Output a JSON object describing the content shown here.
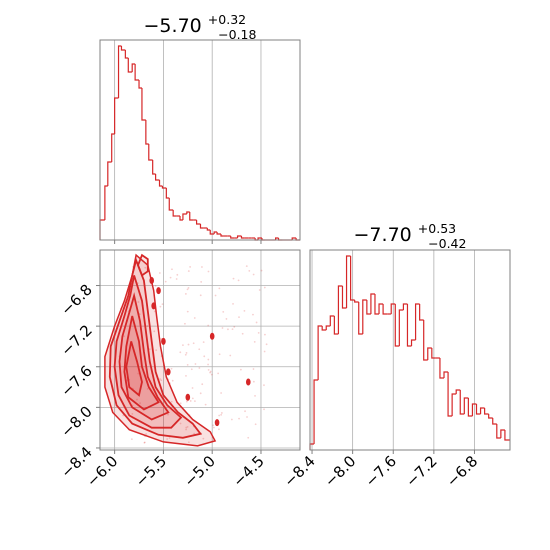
{
  "colors": {
    "accent": "#d62728",
    "grid": "#b0b0b0",
    "frame": "#808080"
  },
  "chart_data": [
    {
      "type": "histogram",
      "panel": "top-left",
      "title": {
        "value": "−5.70",
        "upper": "+0.32",
        "lower": "−0.18"
      },
      "xlim": [
        -6.15,
        -4.1
      ],
      "grid": true,
      "xgrid": [
        -6.0,
        -5.5,
        -5.0,
        -4.5
      ],
      "bin_edges": [
        -6.15,
        -6.1,
        -6.07,
        -6.03,
        -6.0,
        -5.96,
        -5.93,
        -5.89,
        -5.86,
        -5.82,
        -5.79,
        -5.75,
        -5.72,
        -5.68,
        -5.65,
        -5.61,
        -5.58,
        -5.54,
        -5.51,
        -5.47,
        -5.44,
        -5.4,
        -5.37,
        -5.33,
        -5.3,
        -5.26,
        -5.23,
        -5.19,
        -5.16,
        -5.12,
        -5.09,
        -5.05,
        -5.02,
        -4.98,
        -4.95,
        -4.91,
        -4.88,
        -4.84,
        -4.81,
        -4.77,
        -4.74,
        -4.7,
        -4.67,
        -4.63,
        -4.6,
        -4.56,
        -4.53,
        -4.49,
        -4.46,
        -4.42,
        -4.39,
        -4.35,
        -4.32,
        -4.28,
        -4.25,
        -4.21,
        -4.18,
        -4.14,
        -4.1
      ],
      "counts": [
        0.1,
        0.27,
        0.39,
        0.53,
        0.71,
        0.97,
        0.95,
        0.91,
        0.84,
        0.88,
        0.8,
        0.76,
        0.6,
        0.48,
        0.4,
        0.33,
        0.3,
        0.27,
        0.26,
        0.21,
        0.15,
        0.12,
        0.12,
        0.1,
        0.13,
        0.14,
        0.1,
        0.1,
        0.08,
        0.06,
        0.06,
        0.05,
        0.03,
        0.04,
        0.03,
        0.02,
        0.02,
        0.02,
        0.01,
        0.01,
        0.02,
        0.01,
        0.01,
        0.01,
        0.01,
        0.0,
        0.01,
        0.0,
        0.0,
        0.0,
        0.0,
        0.01,
        0.0,
        0.0,
        0.0,
        0.0,
        0.01,
        0.0
      ]
    },
    {
      "type": "contour",
      "panel": "bottom-left",
      "xlim": [
        -6.15,
        -4.1
      ],
      "ylim": [
        -8.42,
        -6.45
      ],
      "grid": true,
      "xticks": [
        -6.0,
        -5.5,
        -5.0,
        -4.5
      ],
      "xtick_labels": [
        "−6.0",
        "−5.5",
        "−5.0",
        "−4.5"
      ],
      "yticks": [
        -6.8,
        -7.2,
        -7.6,
        -8.0,
        -8.4
      ],
      "ytick_labels": [
        "−6.8",
        "−7.2",
        "−7.6",
        "−8.0",
        "−8.4"
      ],
      "region_outline": [
        [
          -5.78,
          -6.5
        ],
        [
          -5.66,
          -6.6
        ],
        [
          -5.6,
          -6.85
        ],
        [
          -5.57,
          -7.1
        ],
        [
          -5.53,
          -7.4
        ],
        [
          -5.47,
          -7.7
        ],
        [
          -5.36,
          -7.95
        ],
        [
          -5.2,
          -8.12
        ],
        [
          -5.02,
          -8.24
        ],
        [
          -4.97,
          -8.33
        ],
        [
          -5.15,
          -8.38
        ],
        [
          -5.5,
          -8.34
        ],
        [
          -5.85,
          -8.22
        ],
        [
          -6.02,
          -8.05
        ],
        [
          -6.1,
          -7.8
        ],
        [
          -6.1,
          -7.5
        ],
        [
          -6.0,
          -7.2
        ],
        [
          -5.9,
          -6.95
        ],
        [
          -5.82,
          -6.7
        ]
      ],
      "contours": [
        [
          [
            -5.78,
            -6.55
          ],
          [
            -5.7,
            -6.75
          ],
          [
            -5.66,
            -7.05
          ],
          [
            -5.62,
            -7.35
          ],
          [
            -5.58,
            -7.65
          ],
          [
            -5.5,
            -7.88
          ],
          [
            -5.35,
            -8.05
          ],
          [
            -5.2,
            -8.16
          ],
          [
            -5.12,
            -8.26
          ],
          [
            -5.3,
            -8.3
          ],
          [
            -5.55,
            -8.27
          ],
          [
            -5.82,
            -8.16
          ],
          [
            -5.98,
            -7.98
          ],
          [
            -6.05,
            -7.7
          ],
          [
            -6.04,
            -7.4
          ],
          [
            -5.95,
            -7.15
          ],
          [
            -5.86,
            -6.9
          ],
          [
            -5.82,
            -6.7
          ]
        ],
        [
          [
            -5.8,
            -6.7
          ],
          [
            -5.72,
            -6.95
          ],
          [
            -5.68,
            -7.25
          ],
          [
            -5.64,
            -7.55
          ],
          [
            -5.58,
            -7.8
          ],
          [
            -5.46,
            -7.98
          ],
          [
            -5.32,
            -8.1
          ],
          [
            -5.42,
            -8.2
          ],
          [
            -5.62,
            -8.2
          ],
          [
            -5.85,
            -8.08
          ],
          [
            -5.96,
            -7.88
          ],
          [
            -6.0,
            -7.6
          ],
          [
            -5.98,
            -7.35
          ],
          [
            -5.9,
            -7.1
          ],
          [
            -5.84,
            -6.9
          ]
        ],
        [
          [
            -5.8,
            -6.9
          ],
          [
            -5.74,
            -7.15
          ],
          [
            -5.7,
            -7.45
          ],
          [
            -5.66,
            -7.7
          ],
          [
            -5.56,
            -7.9
          ],
          [
            -5.45,
            -8.05
          ],
          [
            -5.62,
            -8.12
          ],
          [
            -5.82,
            -8.0
          ],
          [
            -5.93,
            -7.8
          ],
          [
            -5.95,
            -7.55
          ],
          [
            -5.92,
            -7.3
          ],
          [
            -5.86,
            -7.1
          ]
        ],
        [
          [
            -5.82,
            -7.1
          ],
          [
            -5.75,
            -7.35
          ],
          [
            -5.72,
            -7.6
          ],
          [
            -5.65,
            -7.8
          ],
          [
            -5.55,
            -7.95
          ],
          [
            -5.7,
            -8.02
          ],
          [
            -5.86,
            -7.9
          ],
          [
            -5.9,
            -7.65
          ],
          [
            -5.88,
            -7.4
          ]
        ],
        [
          [
            -5.83,
            -7.35
          ],
          [
            -5.77,
            -7.55
          ],
          [
            -5.72,
            -7.75
          ],
          [
            -5.75,
            -7.88
          ],
          [
            -5.85,
            -7.8
          ],
          [
            -5.88,
            -7.6
          ]
        ],
        [
          [
            -5.72,
            -6.5
          ],
          [
            -5.66,
            -6.54
          ],
          [
            -5.66,
            -6.66
          ],
          [
            -5.72,
            -6.7
          ],
          [
            -5.76,
            -6.6
          ]
        ]
      ],
      "islands": [
        [
          -5.6,
          -7.0
        ],
        [
          -5.5,
          -7.35
        ],
        [
          -5.45,
          -7.65
        ],
        [
          -5.25,
          -7.9
        ],
        [
          -5.0,
          -7.3
        ],
        [
          -4.63,
          -7.75
        ],
        [
          -4.95,
          -8.15
        ],
        [
          -5.55,
          -6.85
        ],
        [
          -5.62,
          -6.75
        ]
      ]
    },
    {
      "type": "histogram",
      "panel": "bottom-right",
      "title": {
        "value": "−7.70",
        "upper": "+0.53",
        "lower": "−0.42"
      },
      "xlim": [
        -8.42,
        -6.45
      ],
      "grid": true,
      "xticks": [
        -8.4,
        -8.0,
        -7.6,
        -7.2,
        -6.8
      ],
      "xtick_labels": [
        "−8.4",
        "−8.0",
        "−7.6",
        "−7.2",
        "−6.8"
      ],
      "bin_edges": [
        -8.42,
        -8.38,
        -8.34,
        -8.3,
        -8.26,
        -8.22,
        -8.18,
        -8.14,
        -8.1,
        -8.06,
        -8.02,
        -7.98,
        -7.94,
        -7.9,
        -7.86,
        -7.82,
        -7.78,
        -7.74,
        -7.7,
        -7.66,
        -7.62,
        -7.58,
        -7.54,
        -7.5,
        -7.46,
        -7.42,
        -7.38,
        -7.34,
        -7.3,
        -7.26,
        -7.22,
        -7.18,
        -7.14,
        -7.1,
        -7.06,
        -7.02,
        -6.98,
        -6.94,
        -6.9,
        -6.86,
        -6.82,
        -6.78,
        -6.74,
        -6.7,
        -6.66,
        -6.62,
        -6.58,
        -6.54,
        -6.5,
        -6.45
      ],
      "counts": [
        0.03,
        0.35,
        0.62,
        0.6,
        0.62,
        0.67,
        0.58,
        0.82,
        0.71,
        0.97,
        0.75,
        0.74,
        0.58,
        0.75,
        0.68,
        0.78,
        0.68,
        0.73,
        0.68,
        0.68,
        0.73,
        0.52,
        0.7,
        0.73,
        0.52,
        0.55,
        0.73,
        0.65,
        0.45,
        0.51,
        0.46,
        0.46,
        0.36,
        0.39,
        0.17,
        0.28,
        0.3,
        0.18,
        0.26,
        0.17,
        0.23,
        0.18,
        0.21,
        0.18,
        0.16,
        0.13,
        0.06,
        0.1,
        0.05
      ]
    }
  ]
}
